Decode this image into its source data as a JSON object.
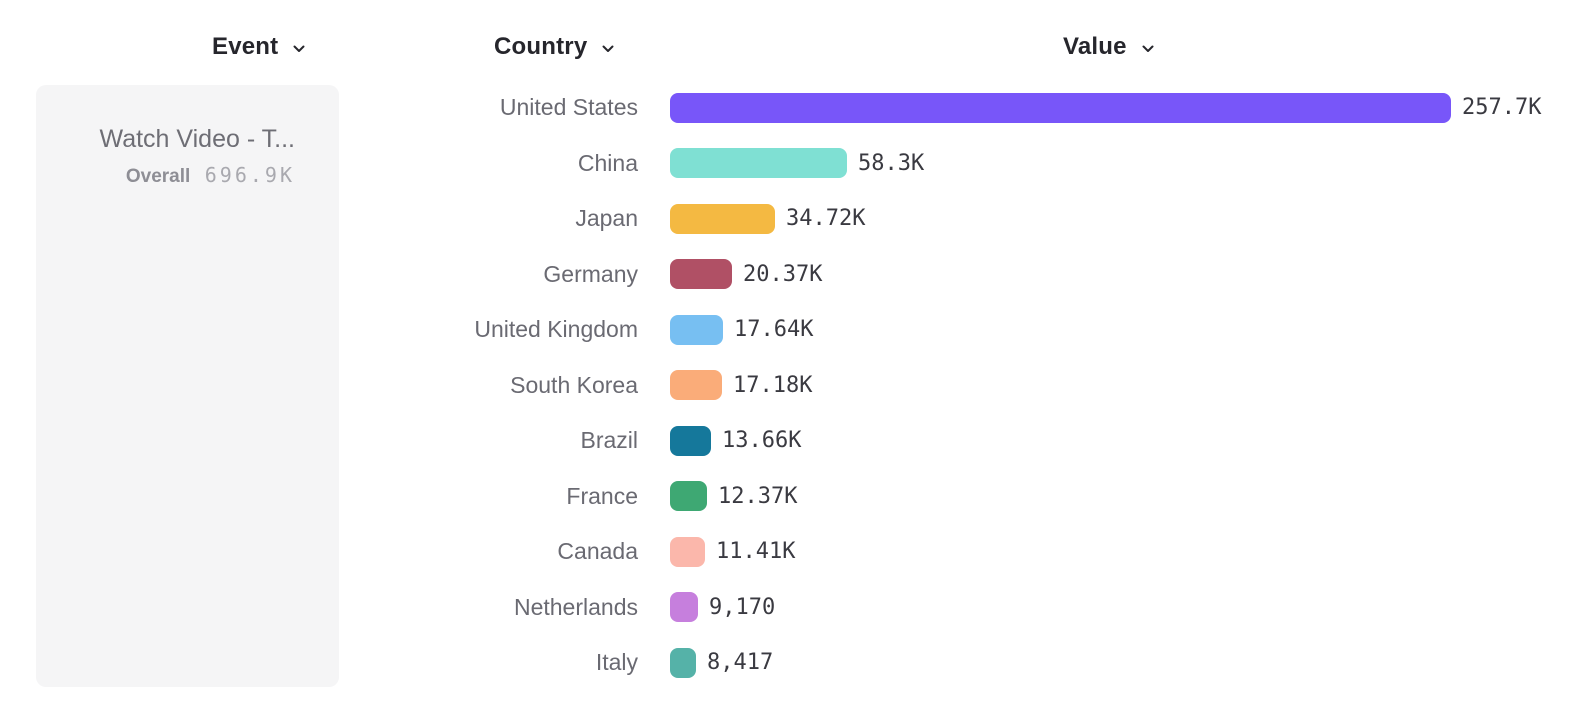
{
  "columns": [
    {
      "id": "event",
      "label": "Event"
    },
    {
      "id": "country",
      "label": "Country"
    },
    {
      "id": "value",
      "label": "Value"
    }
  ],
  "event_card": {
    "title": "Watch Video - T...",
    "metric_label": "Overall",
    "metric_value": "696.9K"
  },
  "icons": {
    "column_dropdown": "chevron-down"
  },
  "chart_data": {
    "type": "bar",
    "orientation": "horizontal",
    "title": "",
    "xlabel": "Value",
    "ylabel": "Country",
    "grid": false,
    "legend": false,
    "xlim": [
      0,
      257700
    ],
    "categories": [
      "United States",
      "China",
      "Japan",
      "Germany",
      "United Kingdom",
      "South Korea",
      "Brazil",
      "France",
      "Canada",
      "Netherlands",
      "Italy"
    ],
    "values": [
      257700,
      58300,
      34720,
      20370,
      17640,
      17180,
      13660,
      12370,
      11410,
      9170,
      8417
    ],
    "value_labels": [
      "257.7K",
      "58.3K",
      "34.72K",
      "20.37K",
      "17.64K",
      "17.18K",
      "13.66K",
      "12.37K",
      "11.41K",
      "9,170",
      "8,417"
    ],
    "bar_colors": [
      "#7856f9",
      "#7fe0d3",
      "#f4b942",
      "#b05065",
      "#77bff2",
      "#faac79",
      "#15789b",
      "#3ea873",
      "#fbb7ab",
      "#c67fdd",
      "#55b2a8"
    ]
  },
  "colors": {
    "background": "#ffffff",
    "card_background": "#f5f5f6",
    "header_text": "#26262c",
    "country_text": "#6a6a72",
    "value_text": "#3a3a41",
    "card_title_text": "#6e6e75",
    "card_metric_label_text": "#8e8e95",
    "card_metric_value_text": "#a9a9af"
  }
}
